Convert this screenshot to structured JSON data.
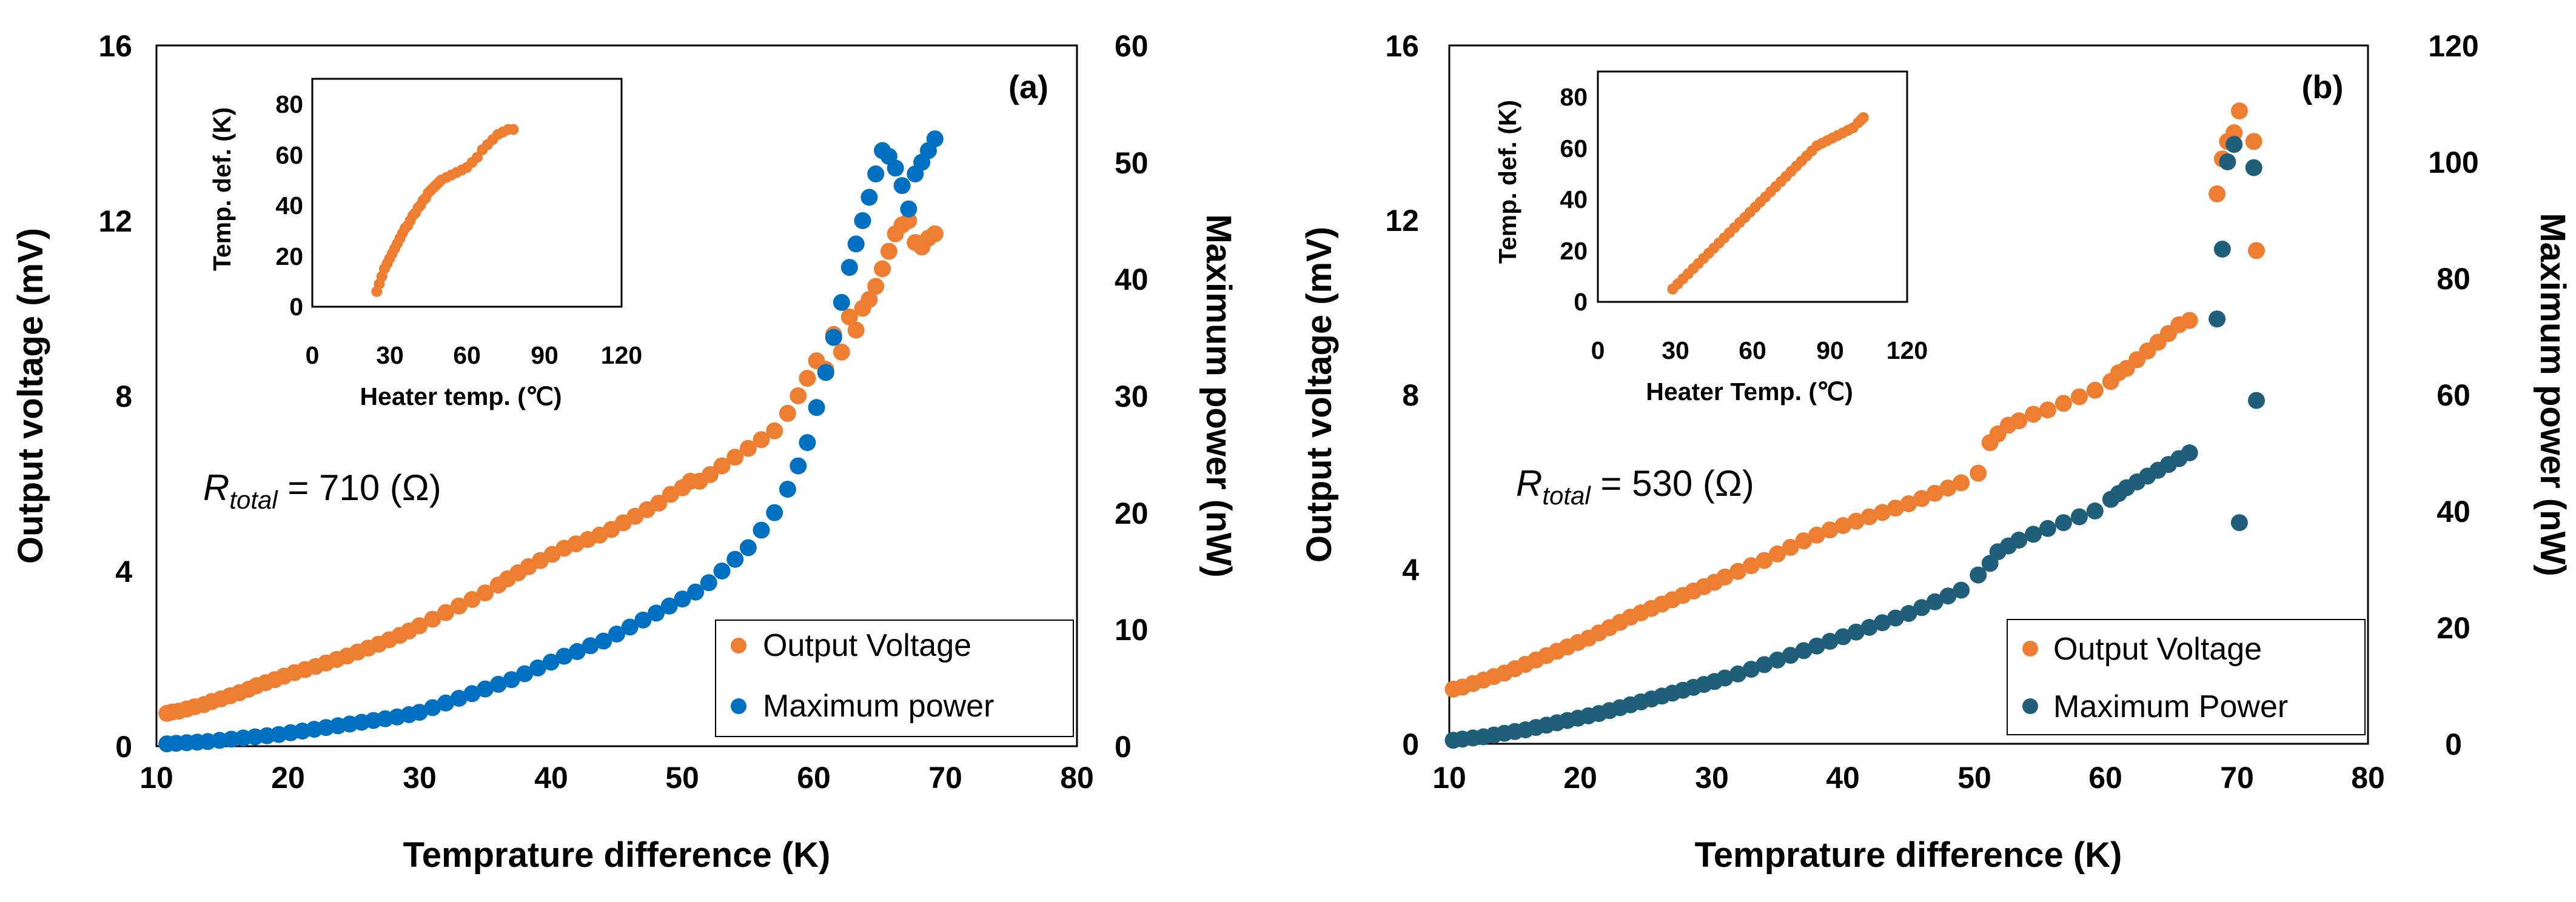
{
  "chart_data": [
    {
      "type": "scatter",
      "panel_label": "(a)",
      "xlabel": "Temprature difference (K)",
      "ylabel_left": "Output voltage (mV)",
      "ylabel_right": "Maximum power (nW)",
      "xlim": [
        10,
        80
      ],
      "ylim_left": [
        0,
        16
      ],
      "ylim_right": [
        0,
        60
      ],
      "xticks": [
        "10",
        "20",
        "30",
        "40",
        "50",
        "60",
        "70",
        "80"
      ],
      "yticks_left": [
        "0",
        "4",
        "8",
        "12",
        "16"
      ],
      "yticks_right": [
        "0",
        "10",
        "20",
        "30",
        "40",
        "50",
        "60"
      ],
      "annotation": {
        "symbol": "R",
        "subscript": "total",
        "text": " = 710 (Ω)"
      },
      "legend": {
        "position": "bottom-right",
        "entries": [
          "Output Voltage",
          "Maximum power"
        ]
      },
      "series": [
        {
          "name": "Output Voltage",
          "axis": "left",
          "color": "#ED7D31",
          "x": [
            10.8,
            11.2,
            11.7,
            12.3,
            12.9,
            13.6,
            14.2,
            14.9,
            15.6,
            16.3,
            17.0,
            17.6,
            18.3,
            19.0,
            19.7,
            20.5,
            21.3,
            22.1,
            22.9,
            23.7,
            24.5,
            25.3,
            26.1,
            26.9,
            27.7,
            28.5,
            29.2,
            30.0,
            31.0,
            32.0,
            33.0,
            34.0,
            35.0,
            36.0,
            36.7,
            37.5,
            38.3,
            39.2,
            40.1,
            41.0,
            41.9,
            42.8,
            43.7,
            44.6,
            45.5,
            46.4,
            47.3,
            48.2,
            49.1,
            50.0,
            50.6,
            51.3,
            52.1,
            53.0,
            54.0,
            55.0,
            56.0,
            57.0,
            58.0,
            58.8,
            59.5,
            60.2,
            60.9,
            61.5,
            62.1,
            62.7,
            63.2,
            63.7,
            64.2,
            64.7,
            65.2,
            65.7,
            66.2,
            66.7,
            67.2,
            67.7,
            68.2,
            68.7,
            69.2
          ],
          "y": [
            0.75,
            0.78,
            0.8,
            0.85,
            0.9,
            0.95,
            1.02,
            1.08,
            1.15,
            1.22,
            1.3,
            1.38,
            1.45,
            1.52,
            1.6,
            1.68,
            1.75,
            1.82,
            1.9,
            1.98,
            2.06,
            2.15,
            2.24,
            2.33,
            2.43,
            2.53,
            2.63,
            2.75,
            2.9,
            3.05,
            3.2,
            3.35,
            3.5,
            3.68,
            3.82,
            3.96,
            4.1,
            4.24,
            4.38,
            4.52,
            4.62,
            4.72,
            4.82,
            4.95,
            5.1,
            5.25,
            5.4,
            5.55,
            5.75,
            5.9,
            6.05,
            6.05,
            6.2,
            6.4,
            6.6,
            6.8,
            7.0,
            7.2,
            7.6,
            8.0,
            8.4,
            8.8,
            8.6,
            9.4,
            9.0,
            9.8,
            9.5,
            10.0,
            10.2,
            10.5,
            10.9,
            11.3,
            11.7,
            11.9,
            12.0,
            11.5,
            11.4,
            11.6,
            11.7
          ]
        },
        {
          "name": "Maximum power",
          "axis": "right",
          "color": "#0070C0",
          "x": [
            10.8,
            11.5,
            12.3,
            13.1,
            13.9,
            14.8,
            15.7,
            16.6,
            17.5,
            18.4,
            19.3,
            20.2,
            21.1,
            22.0,
            22.9,
            23.8,
            24.7,
            25.6,
            26.5,
            27.4,
            28.3,
            29.2,
            30.0,
            31.0,
            32.0,
            33.0,
            34.0,
            35.0,
            36.0,
            37.0,
            38.0,
            39.0,
            40.0,
            41.0,
            42.0,
            43.0,
            44.0,
            45.0,
            46.0,
            47.0,
            48.0,
            49.0,
            50.0,
            51.0,
            52.0,
            53.0,
            54.0,
            55.0,
            56.0,
            57.0,
            58.0,
            58.8,
            59.5,
            60.2,
            60.9,
            61.5,
            62.1,
            62.7,
            63.2,
            63.7,
            64.2,
            64.7,
            65.2,
            65.7,
            66.2,
            66.7,
            67.2,
            67.7,
            68.2,
            68.7,
            69.2
          ],
          "y": [
            0.2,
            0.25,
            0.3,
            0.35,
            0.4,
            0.5,
            0.6,
            0.7,
            0.8,
            0.9,
            1.0,
            1.15,
            1.3,
            1.45,
            1.6,
            1.75,
            1.9,
            2.05,
            2.2,
            2.35,
            2.5,
            2.7,
            2.9,
            3.3,
            3.7,
            4.1,
            4.5,
            4.9,
            5.3,
            5.7,
            6.2,
            6.7,
            7.2,
            7.7,
            8.1,
            8.6,
            9.0,
            9.6,
            10.2,
            10.8,
            11.4,
            12.0,
            12.6,
            13.2,
            14.0,
            15.0,
            16.0,
            17.0,
            18.5,
            20.0,
            22.0,
            24.0,
            26.0,
            29.0,
            32.0,
            35.0,
            38.0,
            41.0,
            43.0,
            45.0,
            47.0,
            49.0,
            51.0,
            50.5,
            49.5,
            48.0,
            46.0,
            49.0,
            50.0,
            51.0,
            52.0
          ]
        }
      ],
      "inset": {
        "type": "scatter",
        "xlabel": "Heater temp. (℃)",
        "ylabel": "Temp. def. (K)",
        "xlim": [
          0,
          120
        ],
        "ylim": [
          0,
          90
        ],
        "xticks": [
          "0",
          "30",
          "60",
          "90",
          "120"
        ],
        "yticks": [
          "0",
          "20",
          "40",
          "60",
          "80"
        ],
        "color": "#ED7D31",
        "x": [
          25,
          26,
          27,
          28,
          29,
          30,
          31,
          32,
          33,
          34,
          35,
          36,
          37,
          38,
          39,
          40,
          41,
          42,
          43,
          44,
          45,
          46,
          47,
          48,
          49,
          50,
          52,
          54,
          56,
          58,
          60,
          62,
          64,
          66,
          68,
          70,
          72,
          74,
          76,
          78
        ],
        "y": [
          6,
          9,
          12,
          15,
          17,
          19,
          21,
          23,
          25,
          27,
          29,
          31,
          32,
          34,
          36,
          37,
          39,
          40,
          42,
          43,
          45,
          46,
          47,
          48,
          49,
          50,
          51,
          52,
          53,
          54,
          55,
          57,
          59,
          62,
          64,
          66,
          68,
          69,
          70,
          70
        ]
      }
    },
    {
      "type": "scatter",
      "panel_label": "(b)",
      "xlabel": "Temprature difference (K)",
      "ylabel_left": "Output voltage (mV)",
      "ylabel_right": "Maximum power (nW)",
      "xlim": [
        10,
        80
      ],
      "ylim_left": [
        0,
        16
      ],
      "ylim_right": [
        0,
        120
      ],
      "xticks": [
        "10",
        "20",
        "30",
        "40",
        "50",
        "60",
        "70",
        "80"
      ],
      "yticks_left": [
        "0",
        "4",
        "8",
        "12",
        "16"
      ],
      "yticks_right": [
        "0",
        "20",
        "40",
        "60",
        "80",
        "100",
        "120"
      ],
      "annotation": {
        "symbol": "R",
        "subscript": "total",
        "text": " = 530 (Ω)"
      },
      "legend": {
        "position": "bottom-right",
        "entries": [
          "Output Voltage",
          "Maximum Power"
        ]
      },
      "series": [
        {
          "name": "Output Voltage",
          "axis": "left",
          "color": "#ED7D31",
          "x": [
            10.3,
            11.0,
            11.8,
            12.6,
            13.4,
            14.2,
            15.0,
            15.8,
            16.6,
            17.4,
            18.2,
            19.0,
            19.8,
            20.6,
            21.4,
            22.2,
            23.0,
            23.8,
            24.6,
            25.4,
            26.2,
            27.0,
            27.8,
            28.6,
            29.4,
            30.2,
            31.0,
            32.0,
            33.0,
            34.0,
            35.0,
            36.0,
            37.0,
            38.0,
            39.0,
            40.0,
            41.0,
            42.0,
            43.0,
            44.0,
            45.0,
            46.0,
            47.0,
            48.0,
            49.0,
            50.3,
            51.2,
            51.8,
            52.6,
            53.4,
            54.5,
            55.6,
            56.8,
            58.0,
            59.2,
            60.4,
            61.0,
            61.6,
            62.4,
            63.2,
            64.0,
            64.8,
            65.6,
            66.4,
            68.5,
            68.9,
            69.3,
            69.8,
            70.2,
            71.3,
            71.5
          ],
          "y": [
            1.25,
            1.3,
            1.38,
            1.46,
            1.54,
            1.62,
            1.72,
            1.82,
            1.92,
            2.02,
            2.12,
            2.22,
            2.32,
            2.42,
            2.54,
            2.66,
            2.78,
            2.9,
            3.0,
            3.1,
            3.2,
            3.3,
            3.4,
            3.5,
            3.6,
            3.7,
            3.82,
            3.95,
            4.08,
            4.2,
            4.35,
            4.5,
            4.65,
            4.78,
            4.9,
            5.0,
            5.1,
            5.2,
            5.3,
            5.4,
            5.5,
            5.62,
            5.74,
            5.86,
            5.98,
            6.2,
            6.9,
            7.1,
            7.3,
            7.4,
            7.55,
            7.65,
            7.8,
            7.95,
            8.1,
            8.3,
            8.5,
            8.6,
            8.8,
            9.0,
            9.2,
            9.4,
            9.6,
            9.7,
            12.6,
            13.4,
            13.8,
            14.0,
            14.5,
            13.8,
            11.3
          ]
        },
        {
          "name": "Maximum Power",
          "axis": "right",
          "color": "#1F5F7A",
          "x": [
            10.3,
            11.0,
            11.8,
            12.6,
            13.4,
            14.2,
            15.0,
            15.8,
            16.6,
            17.4,
            18.2,
            19.0,
            19.8,
            20.6,
            21.4,
            22.2,
            23.0,
            23.8,
            24.6,
            25.4,
            26.2,
            27.0,
            27.8,
            28.6,
            29.4,
            30.2,
            31.0,
            32.0,
            33.0,
            34.0,
            35.0,
            36.0,
            37.0,
            38.0,
            39.0,
            40.0,
            41.0,
            42.0,
            43.0,
            44.0,
            45.0,
            46.0,
            47.0,
            48.0,
            49.0,
            50.3,
            51.2,
            51.8,
            52.6,
            53.4,
            54.5,
            55.6,
            56.8,
            58.0,
            59.2,
            60.4,
            61.0,
            61.6,
            62.4,
            63.2,
            64.0,
            64.8,
            65.6,
            66.4,
            68.5,
            68.9,
            69.3,
            69.8,
            70.2,
            71.3,
            71.5
          ],
          "y": [
            0.6,
            0.8,
            1.0,
            1.2,
            1.5,
            1.8,
            2.1,
            2.4,
            2.8,
            3.2,
            3.6,
            4.0,
            4.4,
            4.8,
            5.2,
            5.7,
            6.2,
            6.7,
            7.2,
            7.7,
            8.2,
            8.7,
            9.2,
            9.7,
            10.2,
            10.7,
            11.3,
            12.0,
            12.8,
            13.6,
            14.4,
            15.2,
            16.0,
            16.8,
            17.6,
            18.4,
            19.2,
            20.0,
            20.8,
            21.6,
            22.4,
            23.4,
            24.4,
            25.4,
            26.4,
            29.0,
            31.0,
            33.0,
            34.0,
            35.0,
            36.0,
            37.0,
            38.0,
            39.0,
            40.0,
            42.0,
            43.0,
            44.0,
            45.0,
            46.0,
            47.0,
            48.0,
            49.0,
            50.0,
            73.0,
            85.0,
            100.0,
            103.0,
            38.0,
            99.0,
            59.0
          ]
        }
      ],
      "inset": {
        "type": "scatter",
        "xlabel": "Heater Temp. (℃)",
        "ylabel": "Temp. def. (K)",
        "xlim": [
          0,
          120
        ],
        "ylim": [
          0,
          90
        ],
        "xticks": [
          "0",
          "30",
          "60",
          "90",
          "120"
        ],
        "yticks": [
          "0",
          "20",
          "40",
          "60",
          "80"
        ],
        "color": "#ED7D31",
        "x": [
          29,
          31,
          33,
          35,
          37,
          39,
          41,
          43,
          45,
          47,
          49,
          51,
          53,
          55,
          57,
          59,
          61,
          63,
          65,
          67,
          69,
          71,
          73,
          75,
          77,
          79,
          81,
          83,
          85,
          87,
          89,
          91,
          93,
          95,
          97,
          99,
          101,
          102,
          103
        ],
        "y": [
          5,
          7,
          9,
          11,
          13,
          15,
          17,
          19,
          21,
          23,
          25,
          27,
          29,
          31,
          33,
          35,
          37,
          39,
          41,
          43,
          45,
          47,
          49,
          51,
          53,
          55,
          57,
          59,
          61,
          62,
          63,
          64,
          65,
          66,
          67,
          68,
          70,
          71,
          72
        ]
      }
    }
  ]
}
